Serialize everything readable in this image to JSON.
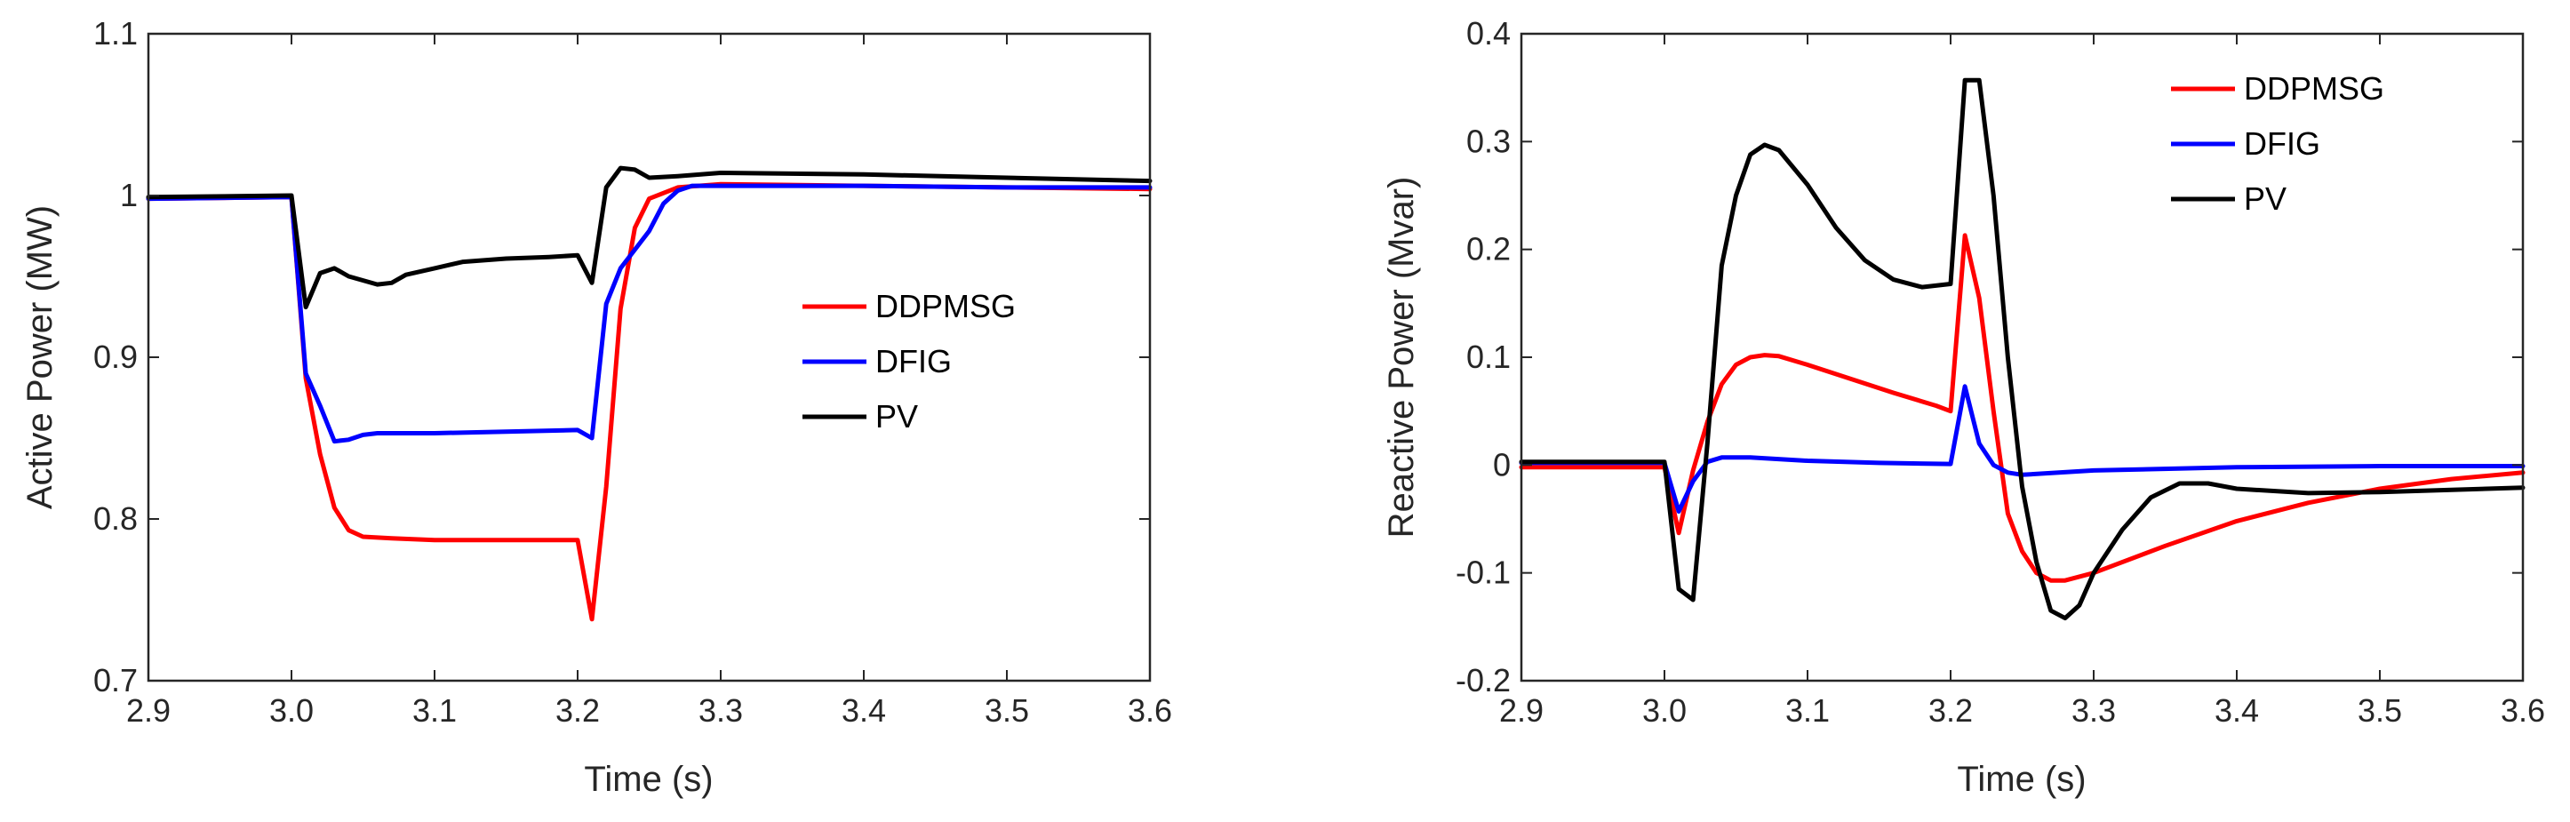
{
  "chart_data": [
    {
      "type": "line",
      "xlabel": "Time (s)",
      "ylabel": "Active Power (MW)",
      "xlim": [
        2.9,
        3.6
      ],
      "ylim": [
        0.7,
        1.1
      ],
      "xticks": [
        2.9,
        3.0,
        3.1,
        3.2,
        3.3,
        3.4,
        3.5,
        3.6
      ],
      "xtick_labels": [
        "2.9",
        "3.0",
        "3.1",
        "3.2",
        "3.3",
        "3.4",
        "3.5",
        "3.6"
      ],
      "yticks": [
        0.7,
        0.8,
        0.9,
        1.0,
        1.1
      ],
      "ytick_labels": [
        "0.7",
        "0.8",
        "0.9",
        "1",
        "1.1"
      ],
      "legend_position": "center-right",
      "series": [
        {
          "name": "DDPMSG",
          "color": "#ff0000",
          "points": [
            [
              2.9,
              0.998
            ],
            [
              3.0,
              0.999
            ],
            [
              3.01,
              0.887
            ],
            [
              3.02,
              0.84
            ],
            [
              3.03,
              0.807
            ],
            [
              3.04,
              0.793
            ],
            [
              3.05,
              0.789
            ],
            [
              3.07,
              0.788
            ],
            [
              3.1,
              0.787
            ],
            [
              3.15,
              0.787
            ],
            [
              3.2,
              0.787
            ],
            [
              3.21,
              0.738
            ],
            [
              3.22,
              0.82
            ],
            [
              3.23,
              0.93
            ],
            [
              3.24,
              0.98
            ],
            [
              3.25,
              0.998
            ],
            [
              3.27,
              1.005
            ],
            [
              3.3,
              1.007
            ],
            [
              3.4,
              1.006
            ],
            [
              3.5,
              1.005
            ],
            [
              3.6,
              1.004
            ]
          ]
        },
        {
          "name": "DFIG",
          "color": "#0000ff",
          "points": [
            [
              2.9,
              0.998
            ],
            [
              3.0,
              0.999
            ],
            [
              3.01,
              0.89
            ],
            [
              3.02,
              0.87
            ],
            [
              3.03,
              0.848
            ],
            [
              3.04,
              0.849
            ],
            [
              3.05,
              0.852
            ],
            [
              3.06,
              0.853
            ],
            [
              3.1,
              0.853
            ],
            [
              3.15,
              0.854
            ],
            [
              3.2,
              0.855
            ],
            [
              3.21,
              0.85
            ],
            [
              3.22,
              0.933
            ],
            [
              3.23,
              0.955
            ],
            [
              3.25,
              0.978
            ],
            [
              3.26,
              0.995
            ],
            [
              3.27,
              1.003
            ],
            [
              3.28,
              1.006
            ],
            [
              3.3,
              1.006
            ],
            [
              3.4,
              1.006
            ],
            [
              3.5,
              1.005
            ],
            [
              3.6,
              1.005
            ]
          ]
        },
        {
          "name": "PV",
          "color": "#000000",
          "points": [
            [
              2.9,
              0.999
            ],
            [
              3.0,
              1.0
            ],
            [
              3.01,
              0.931
            ],
            [
              3.02,
              0.952
            ],
            [
              3.03,
              0.955
            ],
            [
              3.04,
              0.95
            ],
            [
              3.06,
              0.945
            ],
            [
              3.07,
              0.946
            ],
            [
              3.08,
              0.951
            ],
            [
              3.1,
              0.955
            ],
            [
              3.12,
              0.959
            ],
            [
              3.15,
              0.961
            ],
            [
              3.18,
              0.962
            ],
            [
              3.2,
              0.963
            ],
            [
              3.21,
              0.946
            ],
            [
              3.22,
              1.005
            ],
            [
              3.23,
              1.017
            ],
            [
              3.24,
              1.016
            ],
            [
              3.25,
              1.011
            ],
            [
              3.27,
              1.012
            ],
            [
              3.3,
              1.014
            ],
            [
              3.4,
              1.013
            ],
            [
              3.5,
              1.011
            ],
            [
              3.6,
              1.009
            ]
          ]
        }
      ]
    },
    {
      "type": "line",
      "xlabel": "Time (s)",
      "ylabel": "Reactive Power (Mvar)",
      "xlim": [
        2.9,
        3.6
      ],
      "ylim": [
        -0.2,
        0.4
      ],
      "xticks": [
        2.9,
        3.0,
        3.1,
        3.2,
        3.3,
        3.4,
        3.5,
        3.6
      ],
      "xtick_labels": [
        "2.9",
        "3.0",
        "3.1",
        "3.2",
        "3.3",
        "3.4",
        "3.5",
        "3.6"
      ],
      "yticks": [
        -0.2,
        -0.1,
        0.0,
        0.1,
        0.2,
        0.3,
        0.4
      ],
      "ytick_labels": [
        "-0.2",
        "-0.1",
        "0",
        "0.1",
        "0.2",
        "0.3",
        "0.4"
      ],
      "legend_position": "top-right",
      "series": [
        {
          "name": "DDPMSG",
          "color": "#ff0000",
          "points": [
            [
              2.9,
              -0.002
            ],
            [
              3.0,
              -0.002
            ],
            [
              3.01,
              -0.063
            ],
            [
              3.02,
              -0.005
            ],
            [
              3.03,
              0.04
            ],
            [
              3.04,
              0.075
            ],
            [
              3.05,
              0.093
            ],
            [
              3.06,
              0.1
            ],
            [
              3.07,
              0.102
            ],
            [
              3.08,
              0.101
            ],
            [
              3.1,
              0.093
            ],
            [
              3.13,
              0.08
            ],
            [
              3.16,
              0.067
            ],
            [
              3.19,
              0.055
            ],
            [
              3.2,
              0.05
            ],
            [
              3.21,
              0.213
            ],
            [
              3.22,
              0.155
            ],
            [
              3.23,
              0.05
            ],
            [
              3.24,
              -0.045
            ],
            [
              3.25,
              -0.08
            ],
            [
              3.26,
              -0.1
            ],
            [
              3.27,
              -0.107
            ],
            [
              3.28,
              -0.107
            ],
            [
              3.3,
              -0.1
            ],
            [
              3.35,
              -0.075
            ],
            [
              3.4,
              -0.052
            ],
            [
              3.45,
              -0.035
            ],
            [
              3.5,
              -0.022
            ],
            [
              3.55,
              -0.013
            ],
            [
              3.6,
              -0.007
            ]
          ]
        },
        {
          "name": "DFIG",
          "color": "#0000ff",
          "points": [
            [
              2.9,
              0.002
            ],
            [
              3.0,
              0.002
            ],
            [
              3.01,
              -0.043
            ],
            [
              3.02,
              -0.015
            ],
            [
              3.03,
              0.003
            ],
            [
              3.04,
              0.007
            ],
            [
              3.06,
              0.007
            ],
            [
              3.1,
              0.004
            ],
            [
              3.15,
              0.002
            ],
            [
              3.2,
              0.001
            ],
            [
              3.21,
              0.073
            ],
            [
              3.22,
              0.02
            ],
            [
              3.23,
              0.0
            ],
            [
              3.24,
              -0.007
            ],
            [
              3.25,
              -0.009
            ],
            [
              3.3,
              -0.005
            ],
            [
              3.4,
              -0.002
            ],
            [
              3.5,
              -0.001
            ],
            [
              3.6,
              -0.001
            ]
          ]
        },
        {
          "name": "PV",
          "color": "#000000",
          "points": [
            [
              2.9,
              0.003
            ],
            [
              3.0,
              0.003
            ],
            [
              3.01,
              -0.115
            ],
            [
              3.02,
              -0.125
            ],
            [
              3.03,
              0.02
            ],
            [
              3.04,
              0.185
            ],
            [
              3.05,
              0.25
            ],
            [
              3.06,
              0.288
            ],
            [
              3.07,
              0.297
            ],
            [
              3.08,
              0.292
            ],
            [
              3.1,
              0.26
            ],
            [
              3.12,
              0.22
            ],
            [
              3.14,
              0.19
            ],
            [
              3.16,
              0.172
            ],
            [
              3.18,
              0.165
            ],
            [
              3.2,
              0.168
            ],
            [
              3.21,
              0.357
            ],
            [
              3.22,
              0.357
            ],
            [
              3.23,
              0.25
            ],
            [
              3.24,
              0.1
            ],
            [
              3.25,
              -0.02
            ],
            [
              3.26,
              -0.09
            ],
            [
              3.27,
              -0.135
            ],
            [
              3.28,
              -0.142
            ],
            [
              3.29,
              -0.13
            ],
            [
              3.3,
              -0.1
            ],
            [
              3.32,
              -0.06
            ],
            [
              3.34,
              -0.03
            ],
            [
              3.36,
              -0.017
            ],
            [
              3.38,
              -0.017
            ],
            [
              3.4,
              -0.022
            ],
            [
              3.45,
              -0.026
            ],
            [
              3.5,
              -0.025
            ],
            [
              3.55,
              -0.023
            ],
            [
              3.6,
              -0.021
            ]
          ]
        }
      ]
    }
  ]
}
